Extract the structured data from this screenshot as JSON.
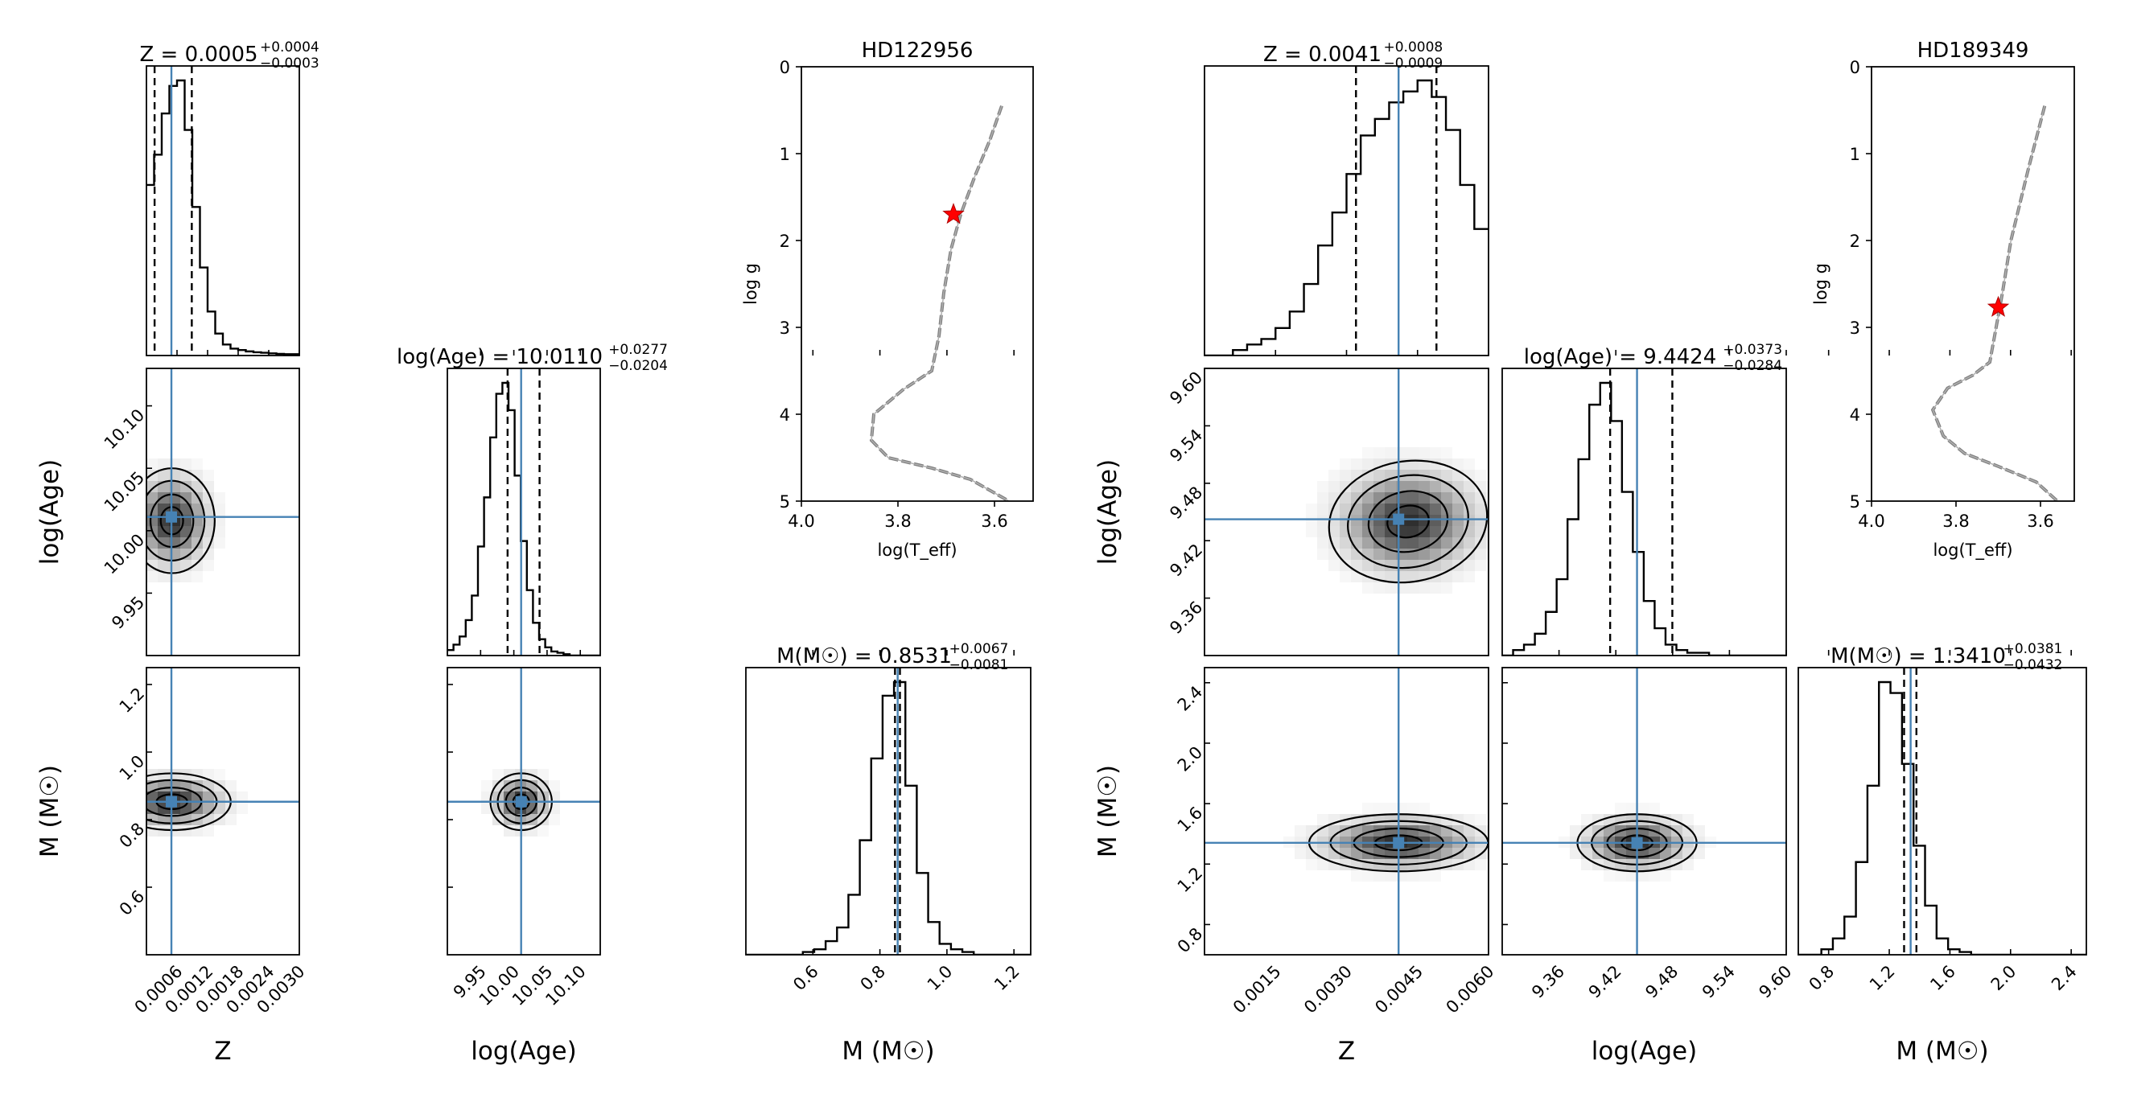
{
  "figure": {
    "truth_color": "#4682b4",
    "hist_color": "#000000",
    "star_color": "#ff0000",
    "track_color": "#808080"
  },
  "chart_data": [
    {
      "type": "corner",
      "star": "HD122956",
      "parameters": [
        {
          "key": "Z",
          "label_main": "Z",
          "label_sub": "",
          "range": [
            0.0,
            0.003
          ],
          "ticks": [
            "0.0006",
            "0.0012",
            "0.0018",
            "0.0024",
            "0.0030"
          ],
          "tick_values": [
            0.0006,
            0.0012,
            0.0018,
            0.0024,
            0.003
          ],
          "title_lhs": "Z = 0.0005",
          "title_plus": "+0.0004",
          "title_minus": "−0.0003",
          "median": 0.0005,
          "q16": 0.00016,
          "q84": 0.00089,
          "truth": 0.00049,
          "hist_edges_min": 0.0,
          "hist_bin": 0.00015,
          "hist_counts": [
            0.62,
            0.73,
            0.88,
            0.98,
            1.0,
            0.82,
            0.54,
            0.32,
            0.16,
            0.08,
            0.04,
            0.025,
            0.02,
            0.015,
            0.012,
            0.01,
            0.008,
            0.006,
            0.005,
            0.005
          ]
        },
        {
          "key": "logAge",
          "label_main": "log(Age)",
          "label_sub": "",
          "range": [
            9.9,
            10.13
          ],
          "ticks": [
            "9.95",
            "10.00",
            "10.05",
            "10.10"
          ],
          "tick_values": [
            9.95,
            10.0,
            10.05,
            10.1
          ],
          "title_lhs": "log(Age) = 10.0110",
          "title_plus": "+0.0277",
          "title_minus": "−0.0204",
          "median": 10.011,
          "q16": 9.9906,
          "q84": 10.0387,
          "truth": 10.011,
          "hist_edges_min": 9.9,
          "hist_bin": 0.0092,
          "hist_counts": [
            0.02,
            0.04,
            0.07,
            0.13,
            0.22,
            0.4,
            0.58,
            0.8,
            0.96,
            1.0,
            0.9,
            0.66,
            0.42,
            0.24,
            0.12,
            0.06,
            0.03,
            0.015,
            0.01,
            0.005,
            0.0,
            0.0,
            0.0,
            0.0,
            0.0
          ]
        },
        {
          "key": "M",
          "label_main": "M",
          "label_sub": "(M☉)",
          "range": [
            0.4,
            1.25
          ],
          "ticks": [
            "0.6",
            "0.8",
            "1.0",
            "1.2"
          ],
          "tick_values": [
            0.6,
            0.8,
            1.0,
            1.2
          ],
          "title_lhs": "M(M☉) = 0.8531",
          "title_plus": "+0.0067",
          "title_minus": "−0.0081",
          "median": 0.8531,
          "q16": 0.845,
          "q84": 0.8598,
          "truth": 0.853,
          "hist_edges_min": 0.4,
          "hist_bin": 0.034,
          "hist_counts": [
            0.0,
            0.0,
            0.0,
            0.0,
            0.0,
            0.01,
            0.02,
            0.05,
            0.1,
            0.22,
            0.42,
            0.72,
            0.95,
            1.0,
            0.62,
            0.3,
            0.12,
            0.04,
            0.02,
            0.01,
            0.0,
            0.0,
            0.0,
            0.0,
            0.0
          ]
        }
      ],
      "pairs": [
        {
          "xi": 0,
          "yi": 1,
          "center": [
            0.0005,
            10.008
          ],
          "sigma": [
            0.0004,
            0.02
          ],
          "rho": 0.0
        },
        {
          "xi": 0,
          "yi": 2,
          "center": [
            0.0005,
            0.853
          ],
          "sigma": [
            0.00055,
            0.04
          ],
          "rho": 0.0
        },
        {
          "xi": 1,
          "yi": 2,
          "center": [
            10.011,
            0.853
          ],
          "sigma": [
            0.022,
            0.04
          ],
          "rho": 0.0
        }
      ],
      "kiel": {
        "title": "HD122956",
        "xlabel": "log(T_eff)",
        "ylabel": "log g",
        "xlim": [
          4.0,
          3.52
        ],
        "ylim": [
          0,
          5
        ],
        "xticks": [
          "4.0",
          "3.8",
          "3.6"
        ],
        "xtick_values": [
          4.0,
          3.8,
          3.6
        ],
        "yticks": [
          "0",
          "1",
          "2",
          "3",
          "4",
          "5"
        ],
        "ytick_values": [
          0,
          1,
          2,
          3,
          4,
          5
        ],
        "star_point": [
          3.685,
          1.7
        ],
        "track": [
          [
            3.585,
            0.45
          ],
          [
            3.61,
            0.85
          ],
          [
            3.64,
            1.25
          ],
          [
            3.67,
            1.7
          ],
          [
            3.69,
            2.1
          ],
          [
            3.705,
            2.6
          ],
          [
            3.715,
            3.1
          ],
          [
            3.73,
            3.5
          ],
          [
            3.79,
            3.72
          ],
          [
            3.85,
            4.0
          ],
          [
            3.855,
            4.3
          ],
          [
            3.82,
            4.5
          ],
          [
            3.73,
            4.62
          ],
          [
            3.65,
            4.75
          ],
          [
            3.57,
            5.0
          ]
        ]
      }
    },
    {
      "type": "corner",
      "star": "HD189349",
      "parameters": [
        {
          "key": "Z",
          "label_main": "Z",
          "label_sub": "",
          "range": [
            0.0,
            0.006
          ],
          "ticks": [
            "0.0015",
            "0.0030",
            "0.0045",
            "0.0060"
          ],
          "tick_values": [
            0.0015,
            0.003,
            0.0045,
            0.006
          ],
          "title_lhs": "Z = 0.0041",
          "title_plus": "+0.0008",
          "title_minus": "−0.0009",
          "median": 0.0041,
          "q16": 0.0032,
          "q84": 0.0049,
          "truth": 0.0041,
          "hist_edges_min": 0.0,
          "hist_bin": 0.0003,
          "hist_counts": [
            0.0,
            0.0,
            0.02,
            0.04,
            0.06,
            0.1,
            0.16,
            0.26,
            0.4,
            0.52,
            0.66,
            0.8,
            0.86,
            0.92,
            0.96,
            1.0,
            0.94,
            0.82,
            0.62,
            0.46
          ]
        },
        {
          "key": "logAge",
          "label_main": "log(Age)",
          "label_sub": "",
          "range": [
            9.3,
            9.6
          ],
          "ticks": [
            "9.36",
            "9.42",
            "9.48",
            "9.54",
            "9.60"
          ],
          "tick_values": [
            9.36,
            9.42,
            9.48,
            9.54,
            9.6
          ],
          "title_lhs": "log(Age) = 9.4424",
          "title_plus": "+0.0373",
          "title_minus": "−0.0284",
          "median": 9.4424,
          "q16": 9.414,
          "q84": 9.4797,
          "truth": 9.4424,
          "hist_edges_min": 9.3,
          "hist_bin": 0.0115,
          "hist_counts": [
            0.0,
            0.02,
            0.04,
            0.08,
            0.16,
            0.28,
            0.5,
            0.72,
            0.92,
            1.0,
            0.86,
            0.6,
            0.38,
            0.2,
            0.1,
            0.04,
            0.02,
            0.01,
            0.01,
            0.0,
            0.0,
            0.0,
            0.0,
            0.0,
            0.0,
            0.0
          ]
        },
        {
          "key": "M",
          "label_main": "M",
          "label_sub": "(M☉)",
          "range": [
            0.6,
            2.5
          ],
          "ticks": [
            "0.8",
            "1.2",
            "1.6",
            "2.0",
            "2.4"
          ],
          "tick_values": [
            0.8,
            1.2,
            1.6,
            2.0,
            2.4
          ],
          "title_lhs": "M(M☉) = 1.3410",
          "title_plus": "+0.0381",
          "title_minus": "−0.0432",
          "median": 1.341,
          "q16": 1.2978,
          "q84": 1.3791,
          "truth": 1.341,
          "hist_edges_min": 0.6,
          "hist_bin": 0.076,
          "hist_counts": [
            0.0,
            0.0,
            0.02,
            0.06,
            0.14,
            0.34,
            0.62,
            1.0,
            0.96,
            0.7,
            0.4,
            0.18,
            0.06,
            0.02,
            0.01,
            0.0,
            0.0,
            0.0,
            0.0,
            0.0,
            0.0,
            0.0,
            0.0,
            0.0,
            0.0
          ]
        }
      ],
      "pairs": [
        {
          "xi": 0,
          "yi": 1,
          "center": [
            0.0043,
            9.44
          ],
          "sigma": [
            0.0008,
            0.03
          ],
          "rho": 0.25
        },
        {
          "xi": 0,
          "yi": 2,
          "center": [
            0.0041,
            1.341
          ],
          "sigma": [
            0.0009,
            0.09
          ],
          "rho": 0.0
        },
        {
          "xi": 1,
          "yi": 2,
          "center": [
            9.4424,
            1.341
          ],
          "sigma": [
            0.03,
            0.09
          ],
          "rho": 0.0
        }
      ],
      "kiel": {
        "title": "HD189349",
        "xlabel": "log(T_eff)",
        "ylabel": "log g",
        "xlim": [
          4.0,
          3.52
        ],
        "ylim": [
          0,
          5
        ],
        "xticks": [
          "4.0",
          "3.8",
          "3.6"
        ],
        "xtick_values": [
          4.0,
          3.8,
          3.6
        ],
        "yticks": [
          "0",
          "1",
          "2",
          "3",
          "4",
          "5"
        ],
        "ytick_values": [
          0,
          1,
          2,
          3,
          4,
          5
        ],
        "star_point": [
          3.7,
          2.77
        ],
        "track": [
          [
            3.59,
            0.45
          ],
          [
            3.63,
            1.2
          ],
          [
            3.67,
            2.0
          ],
          [
            3.69,
            2.6
          ],
          [
            3.705,
            3.0
          ],
          [
            3.72,
            3.4
          ],
          [
            3.76,
            3.55
          ],
          [
            3.82,
            3.7
          ],
          [
            3.855,
            3.95
          ],
          [
            3.83,
            4.25
          ],
          [
            3.78,
            4.45
          ],
          [
            3.7,
            4.6
          ],
          [
            3.61,
            4.78
          ],
          [
            3.56,
            5.0
          ]
        ]
      }
    }
  ]
}
